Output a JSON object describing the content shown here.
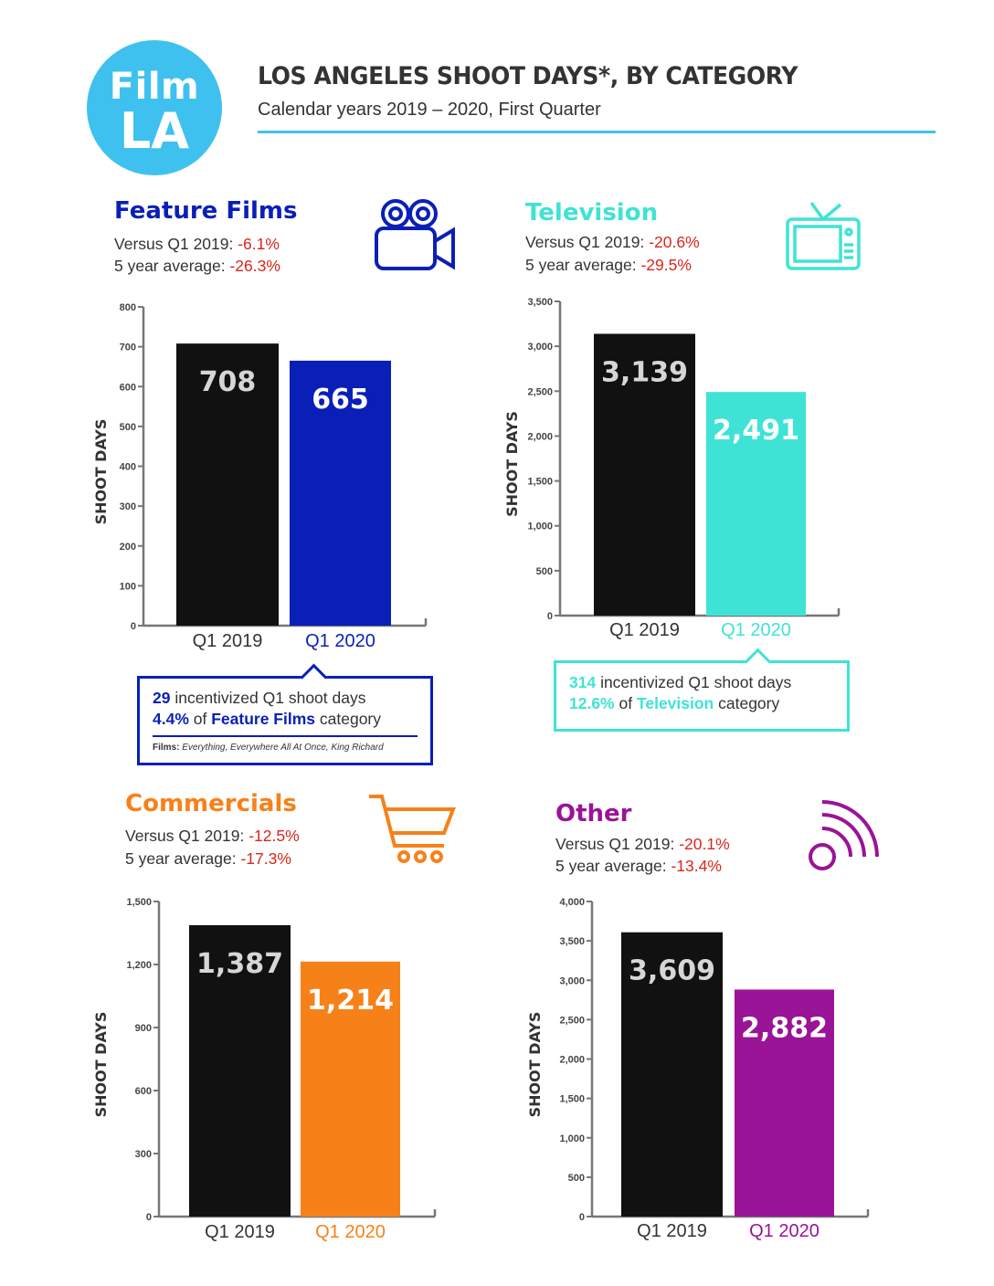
{
  "header": {
    "logo_line1": "Film",
    "logo_line2": "LA",
    "title": "LOS ANGELES SHOOT DAYS*, BY CATEGORY",
    "subtitle_a": "Calendar years 2019 – 2020, ",
    "subtitle_b": "First Quarter",
    "accent_color": "#3fc1ef"
  },
  "panels": {
    "feature": {
      "title": "Feature Films",
      "color": "#0a1fb8",
      "icon": "movie-camera-icon",
      "stat1_label": "Versus Q1 2019: ",
      "stat1_value": "-6.1%",
      "stat2_label": "5 year average: ",
      "stat2_value": "-26.3%",
      "callout": {
        "l1_num": "29",
        "l1_text": " incentivized Q1 shoot days",
        "l2_pct": "4.4%",
        "l2_of": " of ",
        "l2_cat": "Feature Films",
        "l2_tail": " category",
        "films_label": "Films:",
        "films_text": " Everything, Everywhere All At Once, King Richard"
      }
    },
    "television": {
      "title": "Television",
      "color": "#3fe3d6",
      "icon": "tv-icon",
      "stat1_label": "Versus Q1 2019: ",
      "stat1_value": "-20.6%",
      "stat2_label": "5 year average: ",
      "stat2_value": "-29.5%",
      "callout": {
        "l1_num": "314",
        "l1_text": " incentivized Q1 shoot days",
        "l2_pct": "12.6%",
        "l2_of": " of ",
        "l2_cat": "Television",
        "l2_tail": " category"
      }
    },
    "commercials": {
      "title": "Commercials",
      "color": "#f78119",
      "icon": "shopping-cart-icon",
      "stat1_label": "Versus Q1 2019: ",
      "stat1_value": "-12.5%",
      "stat2_label": "5 year average: ",
      "stat2_value": "-17.3%"
    },
    "other": {
      "title": "Other",
      "color": "#9a1497",
      "icon": "signal-icon",
      "stat1_label": "Versus Q1 2019: ",
      "stat1_value": "-20.1%",
      "stat2_label": "5 year average: ",
      "stat2_value": "-13.4%"
    }
  },
  "chart_data": [
    {
      "type": "bar",
      "id": "feature",
      "categories": [
        "Q1 2019",
        "Q1 2020"
      ],
      "values": [
        708,
        665
      ],
      "value_labels": [
        "708",
        "665"
      ],
      "ylabel": "SHOOT DAYS",
      "ylim": [
        0,
        800
      ],
      "yticks": [
        0,
        100,
        200,
        300,
        400,
        500,
        600,
        700,
        800
      ],
      "ytick_labels": [
        "0",
        "100",
        "200",
        "300",
        "400",
        "500",
        "600",
        "700",
        "800"
      ],
      "colors": [
        "#111111",
        "#0a1fb8"
      ]
    },
    {
      "type": "bar",
      "id": "television",
      "categories": [
        "Q1 2019",
        "Q1 2020"
      ],
      "values": [
        3139,
        2491
      ],
      "value_labels": [
        "3,139",
        "2,491"
      ],
      "ylabel": "SHOOT DAYS",
      "ylim": [
        0,
        3500
      ],
      "yticks": [
        0,
        500,
        1000,
        1500,
        2000,
        2500,
        3000,
        3500
      ],
      "ytick_labels": [
        "0",
        "500",
        "1,000",
        "1,500",
        "2,000",
        "2,500",
        "3,000",
        "3,500"
      ],
      "colors": [
        "#111111",
        "#3fe3d6"
      ]
    },
    {
      "type": "bar",
      "id": "commercials",
      "categories": [
        "Q1 2019",
        "Q1 2020"
      ],
      "values": [
        1387,
        1214
      ],
      "value_labels": [
        "1,387",
        "1,214"
      ],
      "ylabel": "SHOOT DAYS",
      "ylim": [
        0,
        1500
      ],
      "yticks": [
        0,
        300,
        600,
        900,
        1200,
        1500
      ],
      "ytick_labels": [
        "0",
        "300",
        "600",
        "900",
        "1,200",
        "1,500"
      ],
      "colors": [
        "#111111",
        "#f78119"
      ]
    },
    {
      "type": "bar",
      "id": "other",
      "categories": [
        "Q1 2019",
        "Q1 2020"
      ],
      "values": [
        3609,
        2882
      ],
      "value_labels": [
        "3,609",
        "2,882"
      ],
      "ylabel": "SHOOT DAYS",
      "ylim": [
        0,
        4000
      ],
      "yticks": [
        0,
        500,
        1000,
        1500,
        2000,
        2500,
        3000,
        3500,
        4000
      ],
      "ytick_labels": [
        "0",
        "500",
        "1,000",
        "1,500",
        "2,000",
        "2,500",
        "3,000",
        "3,500",
        "4,000"
      ],
      "colors": [
        "#111111",
        "#9a1497"
      ]
    }
  ]
}
